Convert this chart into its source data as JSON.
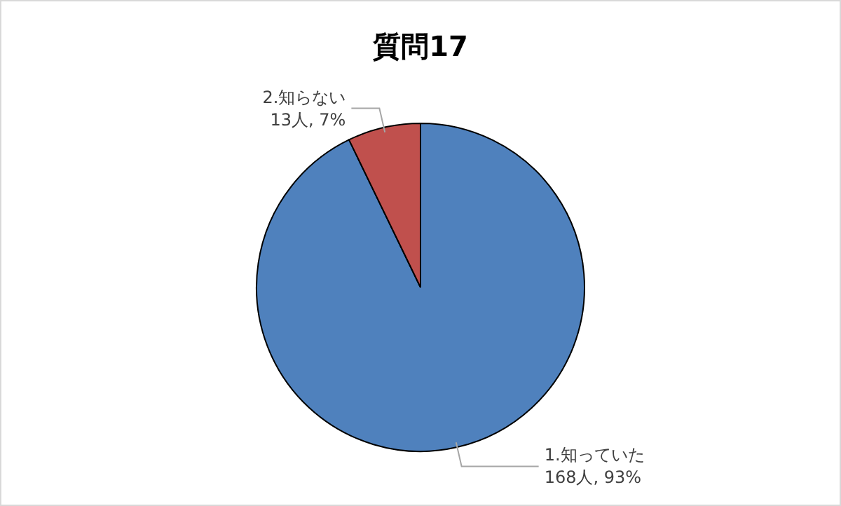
{
  "chart_data": {
    "type": "pie",
    "title": "質問17",
    "categories": [
      "1.知っていた",
      "2.知らない"
    ],
    "values": [
      168,
      13
    ],
    "colors": [
      "#4f81bd",
      "#c0504d"
    ],
    "value_labels": [
      "168人, 93%",
      "13人, 7%"
    ]
  }
}
